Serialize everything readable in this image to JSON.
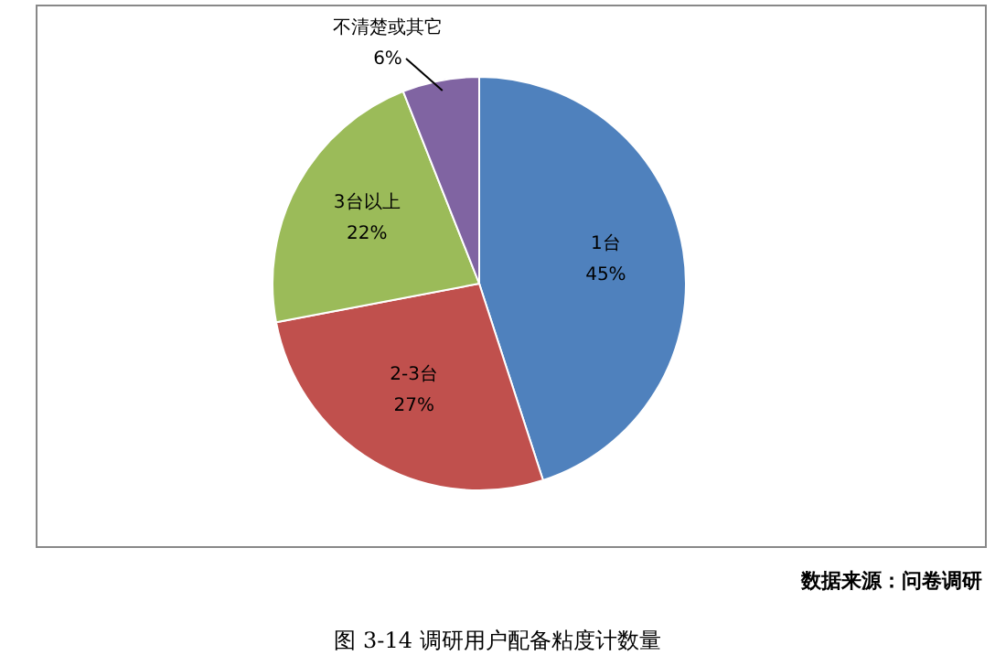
{
  "chart_data": {
    "type": "pie",
    "categories": [
      "1台",
      "2-3台",
      "3台以上",
      "不清楚或其它"
    ],
    "values": [
      45,
      27,
      22,
      6
    ],
    "colors": [
      "#4f81bd",
      "#c0504d",
      "#9bbb59",
      "#8064a2"
    ],
    "value_labels": [
      "45%",
      "27%",
      "22%",
      "6%"
    ],
    "annotations": [
      "数据来源：问卷调研",
      "图 3-14 调研用户配备粘度计数量"
    ]
  }
}
